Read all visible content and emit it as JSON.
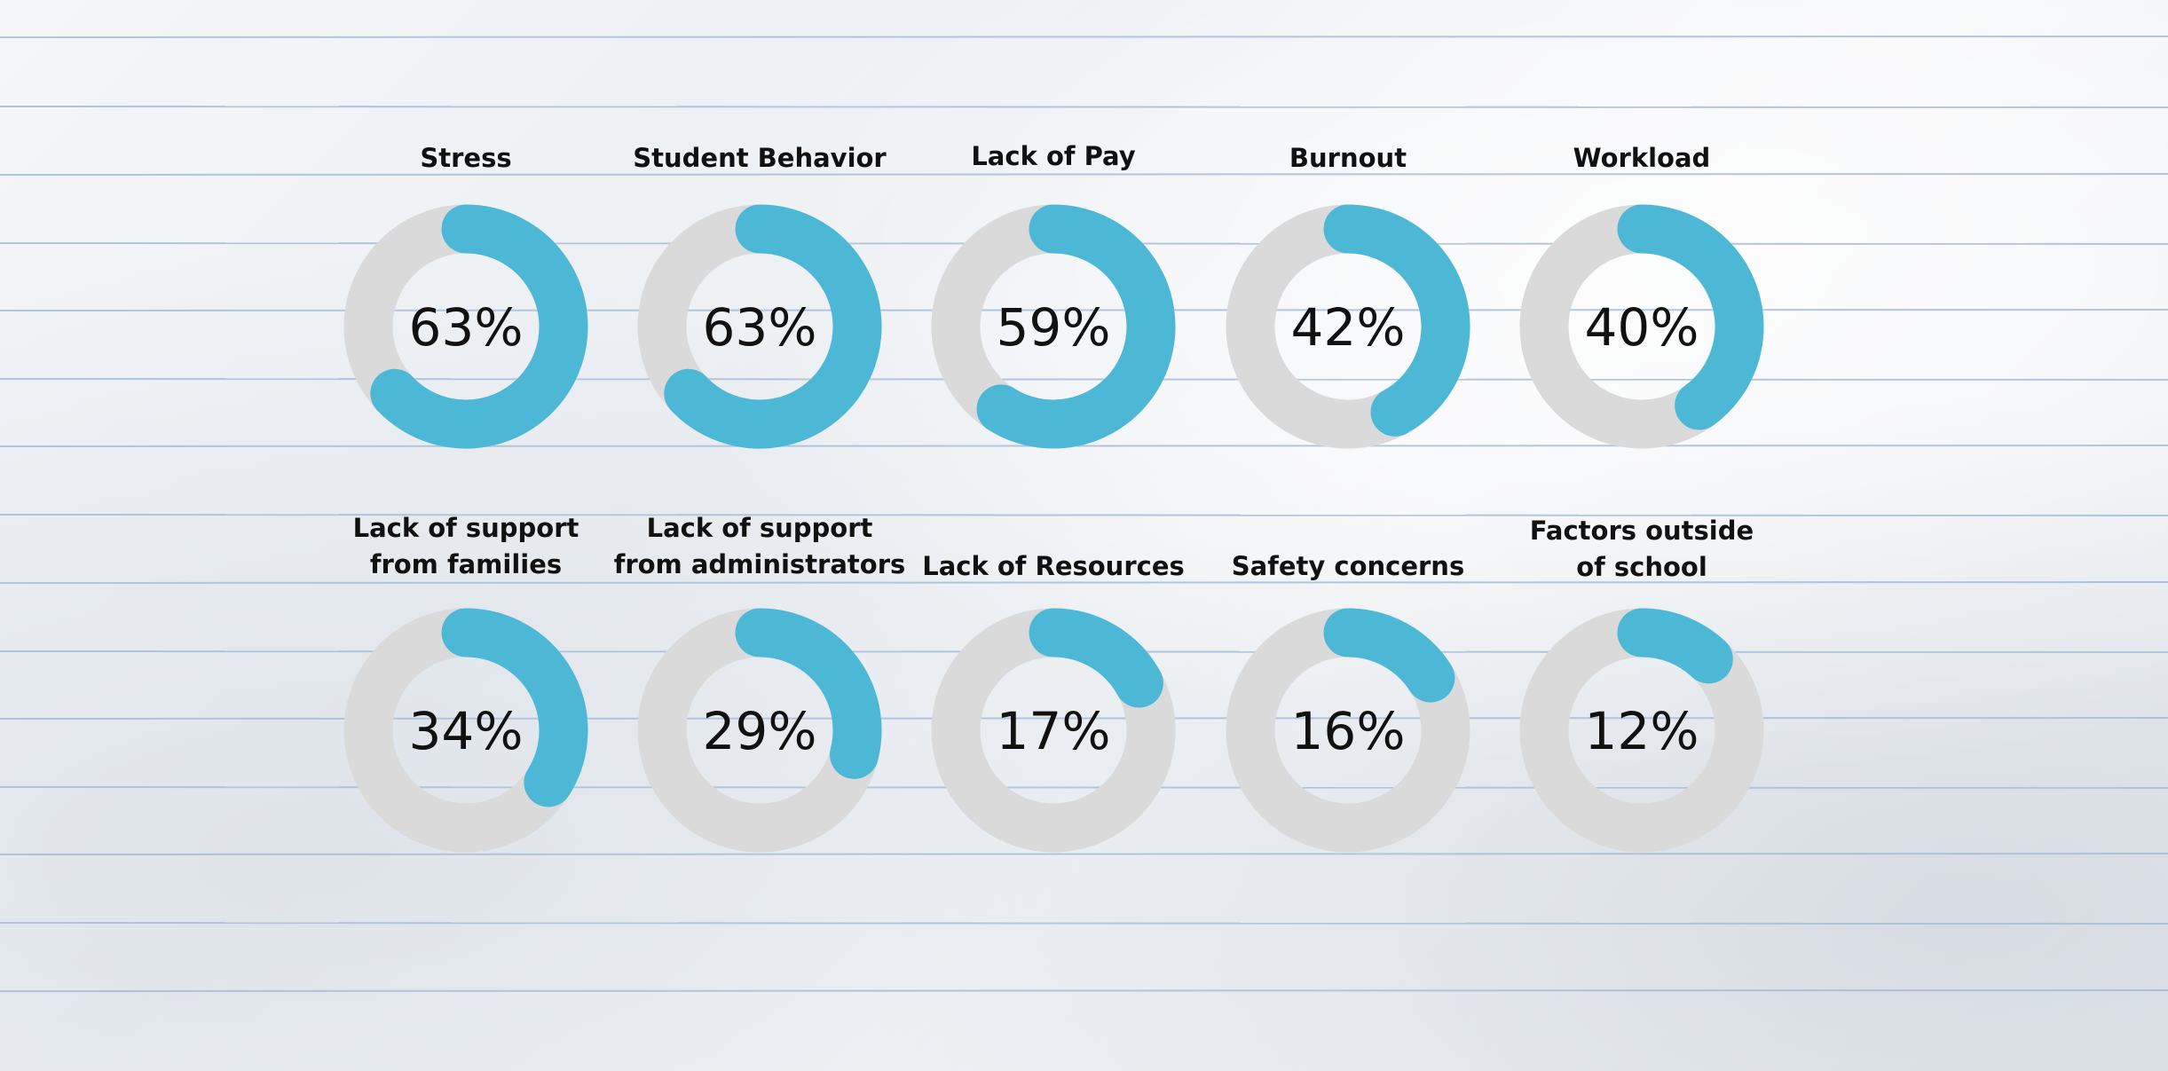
{
  "chart_data": {
    "type": "donut",
    "title": "",
    "colors": {
      "filled": "#4cb8d6",
      "track": "#dadada",
      "text": "#111111",
      "rule_line": "#a9bdd8"
    },
    "items": [
      {
        "label_lines": [
          "Stress"
        ],
        "value": 63,
        "display": "63%"
      },
      {
        "label_lines": [
          "Student Behavior"
        ],
        "value": 63,
        "display": "63%"
      },
      {
        "label_lines": [
          "Lack of Pay"
        ],
        "value": 59,
        "display": "59%"
      },
      {
        "label_lines": [
          "Burnout"
        ],
        "value": 42,
        "display": "42%"
      },
      {
        "label_lines": [
          "Workload"
        ],
        "value": 40,
        "display": "40%"
      },
      {
        "label_lines": [
          "Lack of support",
          "from families"
        ],
        "value": 34,
        "display": "34%"
      },
      {
        "label_lines": [
          "Lack of support",
          "from administrators"
        ],
        "value": 29,
        "display": "29%"
      },
      {
        "label_lines": [
          "Lack of Resources"
        ],
        "value": 17,
        "display": "17%"
      },
      {
        "label_lines": [
          "Safety concerns"
        ],
        "value": 16,
        "display": "16%"
      },
      {
        "label_lines": [
          "Factors outside",
          "of school"
        ],
        "value": 12,
        "display": "12%"
      }
    ]
  }
}
